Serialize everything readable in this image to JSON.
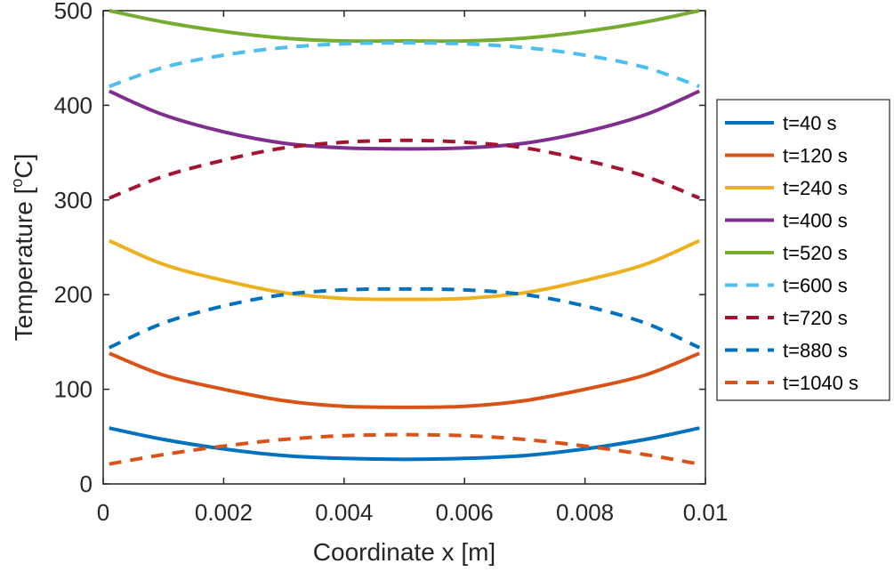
{
  "chart_data": {
    "type": "line",
    "title": "",
    "xlabel": "Coordinate x [m]",
    "ylabel_main": "Temperature [",
    "ylabel_sup": "o",
    "ylabel_tail": "C]",
    "xlim": [
      0,
      0.01
    ],
    "ylim": [
      0,
      500
    ],
    "xticks": [
      0,
      0.002,
      0.004,
      0.006,
      0.008,
      0.01
    ],
    "xtick_labels": [
      "0",
      "0.002",
      "0.004",
      "0.006",
      "0.008",
      "0.01"
    ],
    "yticks": [
      0,
      100,
      200,
      300,
      400,
      500
    ],
    "ytick_labels": [
      "0",
      "100",
      "200",
      "300",
      "400",
      "500"
    ],
    "grid": false,
    "legend_position": "outside-right",
    "x": [
      0.0001,
      0.001,
      0.002,
      0.003,
      0.004,
      0.005,
      0.006,
      0.007,
      0.008,
      0.009,
      0.0099
    ],
    "series": [
      {
        "name": "t=40 s",
        "color": "#0072BD",
        "style": "solid",
        "values": [
          59,
          47,
          37,
          30,
          27,
          26,
          27,
          30,
          37,
          47,
          59
        ]
      },
      {
        "name": "t=120 s",
        "color": "#D95319",
        "style": "solid",
        "values": [
          138,
          115,
          100,
          88,
          82,
          81,
          82,
          88,
          100,
          115,
          138
        ]
      },
      {
        "name": "t=240 s",
        "color": "#EDB120",
        "style": "solid",
        "values": [
          257,
          232,
          215,
          202,
          196,
          195,
          196,
          202,
          215,
          232,
          257
        ]
      },
      {
        "name": "t=400 s",
        "color": "#7E2F8E",
        "style": "solid",
        "values": [
          415,
          390,
          372,
          360,
          355,
          354,
          355,
          360,
          372,
          390,
          415
        ]
      },
      {
        "name": "t=520 s",
        "color": "#77AC30",
        "style": "solid",
        "values": [
          500,
          488,
          478,
          471,
          468,
          468,
          468,
          471,
          478,
          488,
          500
        ]
      },
      {
        "name": "t=600 s",
        "color": "#4DBEEE",
        "style": "dashed",
        "values": [
          420,
          440,
          453,
          461,
          465,
          466,
          465,
          461,
          453,
          440,
          420
        ]
      },
      {
        "name": "t=720 s",
        "color": "#A2142F",
        "style": "dashed",
        "values": [
          302,
          325,
          342,
          355,
          361,
          363,
          361,
          355,
          342,
          325,
          302
        ]
      },
      {
        "name": "t=880 s",
        "color": "#0072BD",
        "style": "dashed",
        "values": [
          144,
          170,
          188,
          200,
          205,
          206,
          205,
          200,
          188,
          170,
          144
        ]
      },
      {
        "name": "t=1040 s",
        "color": "#D95319",
        "style": "dashed",
        "values": [
          21,
          31,
          40,
          47,
          51,
          52,
          51,
          47,
          40,
          31,
          21
        ]
      }
    ]
  }
}
